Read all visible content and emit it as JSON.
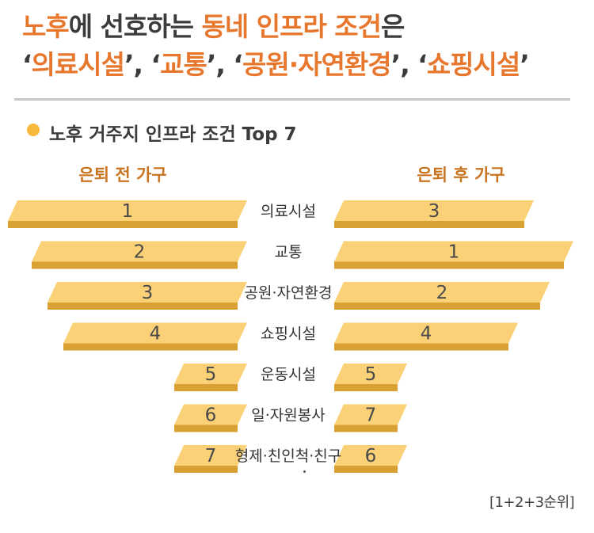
{
  "headline": {
    "line1": [
      {
        "text": "노후",
        "hl": true
      },
      {
        "text": "에 선호하는 ",
        "hl": false
      },
      {
        "text": "동네 인프라 조건",
        "hl": true
      },
      {
        "text": "은",
        "hl": false
      }
    ],
    "line2": [
      {
        "text": "‘",
        "hl": false
      },
      {
        "text": "의료시설",
        "hl": true
      },
      {
        "text": "’, ‘",
        "hl": false
      },
      {
        "text": "교통",
        "hl": true
      },
      {
        "text": "’, ‘",
        "hl": false
      },
      {
        "text": "공원·자연환경",
        "hl": true
      },
      {
        "text": "’, ‘",
        "hl": false
      },
      {
        "text": "쇼핑시설",
        "hl": true
      },
      {
        "text": "’",
        "hl": false
      }
    ]
  },
  "subtitle": "노후 거주지 인프라 조건 Top 7",
  "note": "[1+2+3순위]",
  "colors": {
    "bar_top": "#fbd178",
    "bar_side": "#d9a033",
    "accent": "#e8772e",
    "header": "#c9741f",
    "dot": "#f6b93b"
  },
  "chart_data": {
    "type": "bar",
    "categories": [
      "의료시설",
      "교통",
      "공원·자연환경",
      "쇼핑시설",
      "운동시설",
      "일·자원봉사",
      "형제·친인척·친구"
    ],
    "series": [
      {
        "name": "은퇴 전 가구",
        "values": [
          1,
          2,
          3,
          4,
          5,
          6,
          7
        ]
      },
      {
        "name": "은퇴 후 가구",
        "values": [
          3,
          1,
          2,
          4,
          5,
          7,
          6
        ]
      }
    ]
  }
}
